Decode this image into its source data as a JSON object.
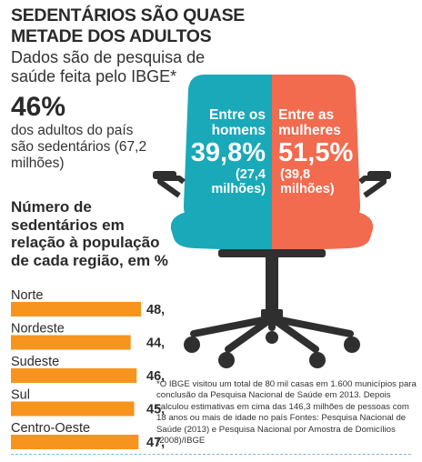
{
  "header": {
    "title": "SEDENTÁRIOS SÃO QUASE METADE DOS ADULTOS",
    "subtitle": "Dados são de pesquisa de saúde feita pelo IBGE*"
  },
  "summary": {
    "value": "46%",
    "description": "dos adultos do país são sedentários (67,2 milhões)"
  },
  "chair": {
    "colors": {
      "men": "#1aa9b8",
      "women": "#f26b4f",
      "frame": "#2f2f2f"
    },
    "men": {
      "label": "Entre os homens",
      "value": "39,8%",
      "sub": "(27,4 milhões)"
    },
    "women": {
      "label": "Entre as mulheres",
      "value": "51,5%",
      "sub": "(39,8 milhões)"
    }
  },
  "chart_data": {
    "type": "bar",
    "orientation": "horizontal",
    "title": "Número de sedentários em relação à população de cada região, em %",
    "categories": [
      "Norte",
      "Nordeste",
      "Sudeste",
      "Sul",
      "Centro-Oeste"
    ],
    "values": [
      48.1,
      44.3,
      46.5,
      45.6,
      47.2
    ],
    "value_labels": [
      "48,1",
      "44,3",
      "46,5",
      "45,6",
      "47,2"
    ],
    "bar_color": "#f7941d",
    "xlim": [
      0,
      48.1
    ]
  },
  "footnote": "*O IBGE visitou um total de 80 mil casas em 1.600 municípios para conclusão da Pesquisa Nacional de Saúde em 2013. Depois calculou estimativas em cima das 146,3 milhões de pessoas com 18 anos ou mais de idade no país Fontes: Pesquisa Nacional de Saúde (2013) e Pesquisa Nacional por Amostra de Domicílios (2008)/IBGE"
}
